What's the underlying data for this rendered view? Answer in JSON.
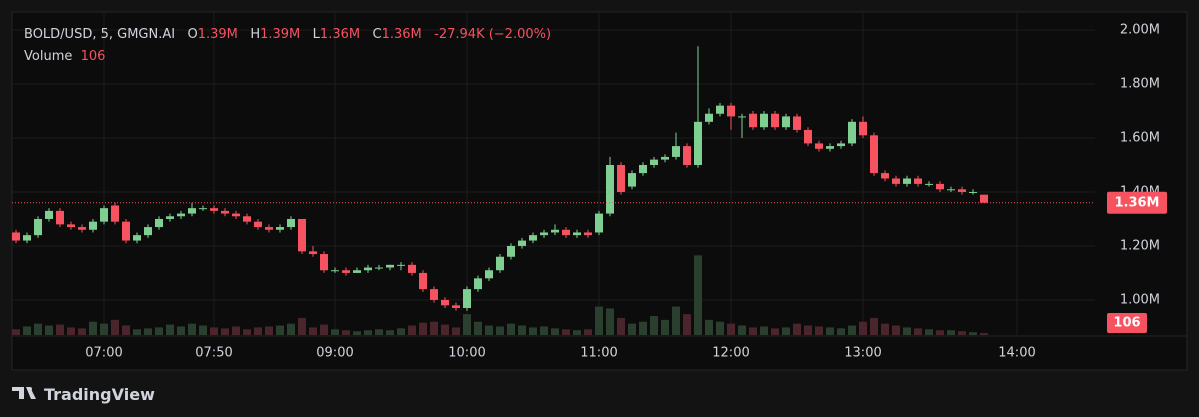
{
  "chart_data": {
    "type": "candlestick",
    "header": {
      "symbol": "BOLD/USD, 5, GMGN.AI",
      "ohlc_keys": [
        "O",
        "H",
        "L",
        "C"
      ],
      "ohlc_labels": [
        "1.39M",
        "1.39M",
        "1.36M",
        "1.36M"
      ],
      "change": "-27.94K (−2.00%)",
      "volume_title": "Volume"
    },
    "brand": "TradingView",
    "categories": [
      null,
      null,
      null,
      null,
      null,
      null,
      null,
      null,
      "07:00",
      null,
      null,
      null,
      null,
      null,
      null,
      null,
      null,
      null,
      "07:50",
      null,
      null,
      null,
      null,
      null,
      null,
      null,
      null,
      null,
      null,
      "09:00",
      null,
      null,
      null,
      null,
      null,
      null,
      null,
      null,
      null,
      null,
      null,
      "10:00",
      null,
      null,
      null,
      null,
      null,
      null,
      null,
      null,
      null,
      null,
      null,
      "11:00",
      null,
      null,
      null,
      null,
      null,
      null,
      null,
      null,
      null,
      null,
      null,
      "12:00",
      null,
      null,
      null,
      null,
      null,
      null,
      null,
      null,
      null,
      null,
      null,
      "13:00",
      null,
      null,
      null,
      null,
      null,
      null,
      null,
      null,
      null,
      null,
      null,
      null,
      null,
      "14:00"
    ],
    "open": [
      1.25,
      1.22,
      1.24,
      1.3,
      1.33,
      1.28,
      1.27,
      1.26,
      1.29,
      1.35,
      1.29,
      1.22,
      1.24,
      1.27,
      1.3,
      1.31,
      1.32,
      1.34,
      1.34,
      1.33,
      1.32,
      1.31,
      1.29,
      1.27,
      1.26,
      1.27,
      1.3,
      1.18,
      1.17,
      1.11,
      1.11,
      1.1,
      1.11,
      1.12,
      1.12,
      1.13,
      1.13,
      1.1,
      1.04,
      1.0,
      0.98,
      0.97,
      1.04,
      1.08,
      1.11,
      1.16,
      1.2,
      1.22,
      1.24,
      1.25,
      1.26,
      1.24,
      1.25,
      1.25,
      1.32,
      1.5,
      1.42,
      1.47,
      1.5,
      1.52,
      1.53,
      1.57,
      1.5,
      1.66,
      1.69,
      1.72,
      1.68,
      1.69,
      1.64,
      1.69,
      1.64,
      1.68,
      1.63,
      1.58,
      1.56,
      1.57,
      1.58,
      1.66,
      1.61,
      1.47,
      1.45,
      1.43,
      1.45,
      1.43,
      1.43,
      1.41,
      1.41,
      1.4,
      1.39,
      null,
      null,
      null
    ],
    "high": [
      1.26,
      1.25,
      1.31,
      1.34,
      1.34,
      1.29,
      1.28,
      1.3,
      1.35,
      1.36,
      1.3,
      1.25,
      1.28,
      1.31,
      1.32,
      1.33,
      1.36,
      1.35,
      1.35,
      1.34,
      1.33,
      1.32,
      1.3,
      1.28,
      1.28,
      1.31,
      1.3,
      1.2,
      1.18,
      1.12,
      1.12,
      1.12,
      1.13,
      1.13,
      1.13,
      1.14,
      1.14,
      1.11,
      1.05,
      1.01,
      0.99,
      1.05,
      1.09,
      1.12,
      1.17,
      1.21,
      1.23,
      1.25,
      1.26,
      1.28,
      1.27,
      1.26,
      1.26,
      1.33,
      1.53,
      1.51,
      1.48,
      1.51,
      1.53,
      1.54,
      1.62,
      1.58,
      1.94,
      1.71,
      1.73,
      1.73,
      1.69,
      1.7,
      1.7,
      1.7,
      1.69,
      1.69,
      1.64,
      1.59,
      1.58,
      1.59,
      1.67,
      1.68,
      1.62,
      1.48,
      1.46,
      1.46,
      1.46,
      1.44,
      1.44,
      1.42,
      1.42,
      1.41,
      1.39,
      null,
      null,
      null
    ],
    "low": [
      1.21,
      1.21,
      1.23,
      1.29,
      1.27,
      1.26,
      1.25,
      1.25,
      1.28,
      1.28,
      1.21,
      1.21,
      1.23,
      1.26,
      1.29,
      1.3,
      1.31,
      1.33,
      1.32,
      1.31,
      1.3,
      1.28,
      1.26,
      1.25,
      1.25,
      1.26,
      1.17,
      1.16,
      1.1,
      1.1,
      1.09,
      1.1,
      1.1,
      1.11,
      1.11,
      1.11,
      1.09,
      1.03,
      0.99,
      0.97,
      0.96,
      0.96,
      1.03,
      1.07,
      1.1,
      1.15,
      1.19,
      1.21,
      1.23,
      1.24,
      1.23,
      1.23,
      1.23,
      1.24,
      1.31,
      1.39,
      1.41,
      1.46,
      1.49,
      1.51,
      1.52,
      1.49,
      1.49,
      1.65,
      1.68,
      1.63,
      1.6,
      1.63,
      1.63,
      1.63,
      1.63,
      1.62,
      1.57,
      1.55,
      1.55,
      1.56,
      1.57,
      1.6,
      1.46,
      1.44,
      1.42,
      1.42,
      1.42,
      1.42,
      1.4,
      1.4,
      1.39,
      1.39,
      1.36,
      null,
      null,
      null
    ],
    "close": [
      1.22,
      1.24,
      1.3,
      1.33,
      1.28,
      1.27,
      1.26,
      1.29,
      1.34,
      1.29,
      1.22,
      1.24,
      1.27,
      1.3,
      1.31,
      1.32,
      1.34,
      1.34,
      1.33,
      1.32,
      1.31,
      1.29,
      1.27,
      1.26,
      1.27,
      1.3,
      1.18,
      1.17,
      1.11,
      1.11,
      1.1,
      1.11,
      1.12,
      1.12,
      1.13,
      1.13,
      1.1,
      1.04,
      1.0,
      0.98,
      0.97,
      1.04,
      1.08,
      1.11,
      1.16,
      1.2,
      1.22,
      1.24,
      1.25,
      1.26,
      1.24,
      1.25,
      1.24,
      1.32,
      1.5,
      1.4,
      1.47,
      1.5,
      1.52,
      1.53,
      1.57,
      1.5,
      1.66,
      1.69,
      1.72,
      1.68,
      1.68,
      1.64,
      1.69,
      1.64,
      1.68,
      1.63,
      1.58,
      1.56,
      1.57,
      1.58,
      1.66,
      1.61,
      1.47,
      1.45,
      1.43,
      1.45,
      1.43,
      1.43,
      1.41,
      1.41,
      1.4,
      1.4,
      1.36,
      null,
      null,
      null
    ],
    "volumes": [
      300,
      450,
      600,
      500,
      550,
      400,
      350,
      700,
      600,
      800,
      500,
      300,
      350,
      400,
      550,
      450,
      600,
      500,
      400,
      350,
      450,
      300,
      400,
      450,
      500,
      600,
      900,
      400,
      550,
      300,
      250,
      200,
      250,
      300,
      250,
      350,
      500,
      650,
      700,
      550,
      400,
      1100,
      700,
      500,
      450,
      600,
      500,
      400,
      450,
      350,
      300,
      250,
      300,
      1500,
      1400,
      900,
      600,
      700,
      1000,
      800,
      1500,
      1100,
      4200,
      800,
      700,
      600,
      500,
      400,
      450,
      350,
      400,
      600,
      500,
      450,
      400,
      350,
      500,
      700,
      900,
      600,
      500,
      400,
      350,
      300,
      250,
      250,
      200,
      150,
      106,
      null,
      null,
      null
    ],
    "up_color": "#7fcf93",
    "down_color": "#f7525f",
    "volume_up_color": "#2a3f2e",
    "volume_down_color": "#4a252b",
    "ylim": [
      0.87,
      2.067
    ],
    "yticks": [
      {
        "value": 1.0,
        "label": "1.00M"
      },
      {
        "value": 1.2,
        "label": "1.20M"
      },
      {
        "value": 1.4,
        "label": "1.40M"
      },
      {
        "value": 1.6,
        "label": "1.60M"
      },
      {
        "value": 1.8,
        "label": "1.80M"
      },
      {
        "value": 2.0,
        "label": "2.00M"
      }
    ],
    "volume_ylim": [
      0,
      5800
    ],
    "last_price": {
      "value": 1.36,
      "label": "1.36M"
    },
    "grid": true
  }
}
